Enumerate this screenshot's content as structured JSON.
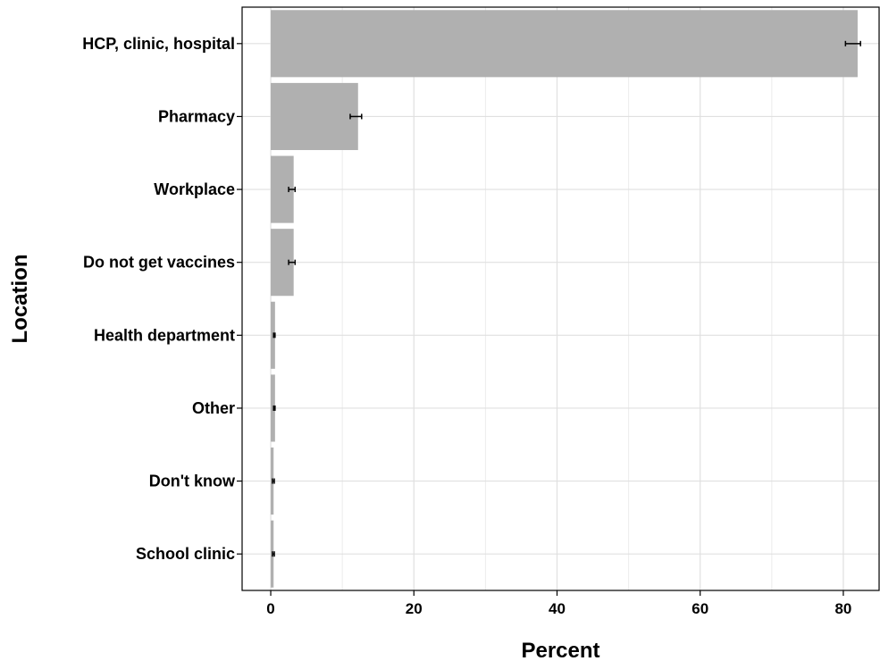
{
  "chart_data": {
    "type": "bar",
    "orientation": "horizontal",
    "xlabel": "Percent",
    "ylabel": "Location",
    "xlim": [
      -4,
      85
    ],
    "xticks": [
      0,
      20,
      40,
      60,
      80
    ],
    "grid": true,
    "bar_color": "#b0b0b0",
    "categories": [
      "HCP, clinic, hospital",
      "Pharmacy",
      "Workplace",
      "Do not get vaccines",
      "Health department",
      "Other",
      "Don't know",
      "School clinic"
    ],
    "values": [
      82.0,
      12.2,
      3.2,
      3.2,
      0.6,
      0.6,
      0.4,
      0.4
    ],
    "error_low": [
      80.3,
      11.1,
      2.5,
      2.5,
      0.4,
      0.4,
      0.25,
      0.25
    ],
    "error_high": [
      82.4,
      12.7,
      3.4,
      3.4,
      0.6,
      0.6,
      0.5,
      0.5
    ]
  }
}
